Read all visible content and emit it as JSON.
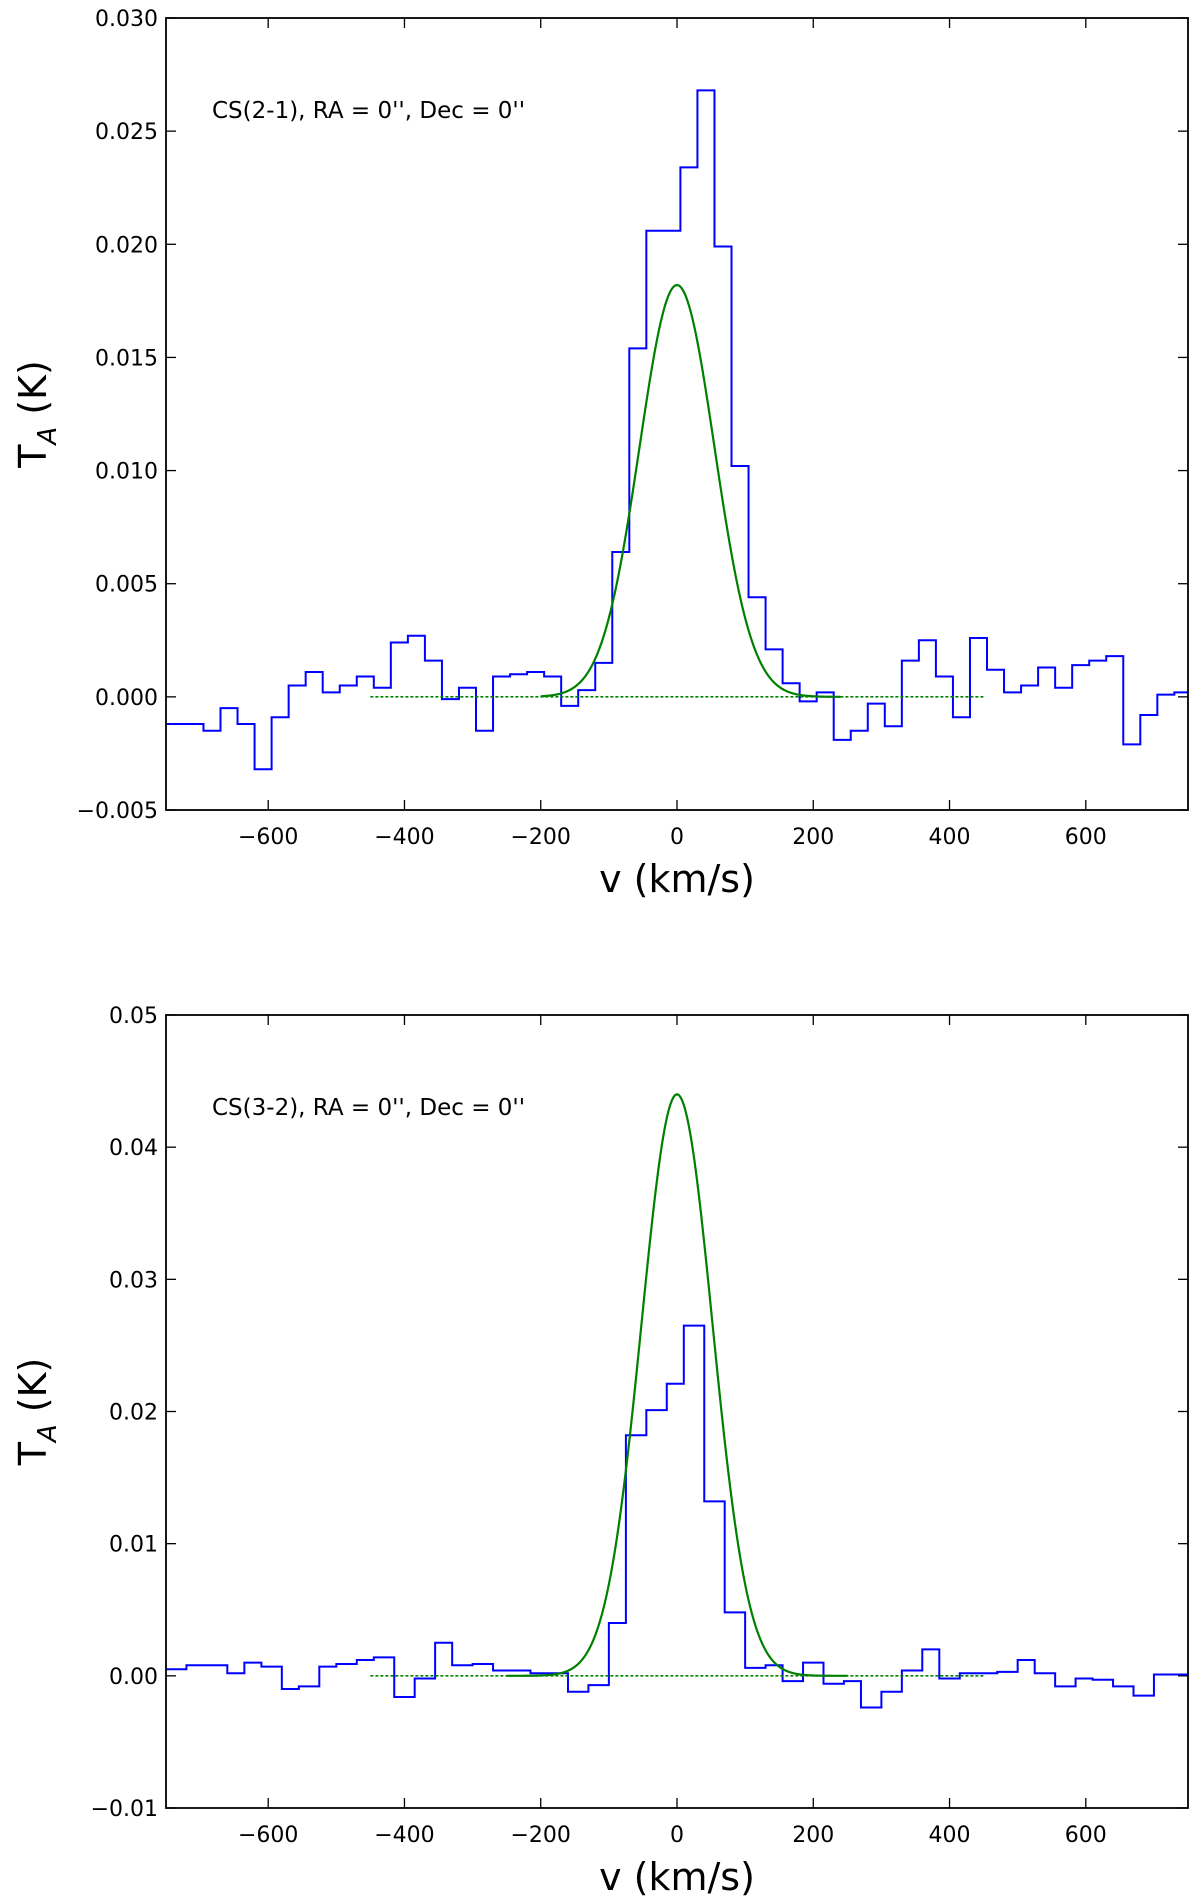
{
  "chart_data": [
    {
      "type": "line",
      "annotation": "CS(2-1), RA = 0'', Dec = 0''",
      "xlabel": "v (km/s)",
      "ylabel_main": "T",
      "ylabel_sub": "A",
      "ylabel_unit": "(K)",
      "xlim": [
        -750,
        750
      ],
      "ylim": [
        -0.005,
        0.03
      ],
      "xticks": [
        -600,
        -400,
        -200,
        0,
        200,
        400,
        600
      ],
      "xtick_labels": [
        "−600",
        "−400",
        "−200",
        "0",
        "200",
        "400",
        "600"
      ],
      "yticks": [
        -0.005,
        0.0,
        0.005,
        0.01,
        0.015,
        0.02,
        0.025,
        0.03
      ],
      "ytick_labels": [
        "−0.005",
        "0.000",
        "0.005",
        "0.010",
        "0.015",
        "0.020",
        "0.025",
        "0.030"
      ],
      "grid": false,
      "series": [
        {
          "style": "step",
          "color": "#0000ff",
          "x": [
            -750,
            -720,
            -695,
            -670,
            -645,
            -620,
            -595,
            -570,
            -545,
            -520,
            -495,
            -470,
            -445,
            -420,
            -395,
            -370,
            -345,
            -320,
            -295,
            -270,
            -245,
            -220,
            -195,
            -170,
            -145,
            -120,
            -95,
            -70,
            -45,
            -20,
            5,
            30,
            55,
            80,
            105,
            130,
            155,
            180,
            205,
            230,
            255,
            280,
            305,
            330,
            355,
            380,
            405,
            430,
            455,
            480,
            505,
            530,
            555,
            580,
            605,
            630,
            655,
            680,
            705,
            730,
            750
          ],
          "y": [
            -0.0012,
            -0.0012,
            -0.0015,
            -0.0005,
            -0.0012,
            -0.0032,
            -0.0009,
            0.0005,
            0.0011,
            0.0002,
            0.0005,
            0.0009,
            0.0004,
            0.0024,
            0.0027,
            0.0016,
            -0.0001,
            0.0004,
            -0.0015,
            0.0009,
            0.001,
            0.0011,
            0.0009,
            -0.0004,
            0.0003,
            0.0015,
            0.0064,
            0.0154,
            0.0206,
            0.0206,
            0.0234,
            0.0268,
            0.0199,
            0.0102,
            0.0044,
            0.0021,
            0.0006,
            -0.0002,
            0.0002,
            -0.0019,
            -0.0015,
            -0.0003,
            -0.0013,
            0.0016,
            0.0025,
            0.0009,
            -0.0009,
            0.0026,
            0.0012,
            0.0002,
            0.0005,
            0.0013,
            0.0004,
            0.0014,
            0.0016,
            0.0018,
            -0.0021,
            -0.0008,
            0.0001,
            0.0002,
            0.0002
          ]
        },
        {
          "style": "gaussian",
          "color": "#008000",
          "amplitude": 0.0182,
          "center": 0,
          "sigma": 55,
          "x_range": [
            -200,
            240
          ]
        },
        {
          "style": "baseline",
          "color": "#008000",
          "y": 0,
          "x_range": [
            -450,
            450
          ]
        }
      ]
    },
    {
      "type": "line",
      "annotation": "CS(3-2), RA = 0'', Dec = 0''",
      "xlabel": "v (km/s)",
      "ylabel_main": "T",
      "ylabel_sub": "A",
      "ylabel_unit": "(K)",
      "xlim": [
        -750,
        750
      ],
      "ylim": [
        -0.01,
        0.05
      ],
      "xticks": [
        -600,
        -400,
        -200,
        0,
        200,
        400,
        600
      ],
      "xtick_labels": [
        "−600",
        "−400",
        "−200",
        "0",
        "200",
        "400",
        "600"
      ],
      "yticks": [
        -0.01,
        0.0,
        0.01,
        0.02,
        0.03,
        0.04,
        0.05
      ],
      "ytick_labels": [
        "−0.01",
        "0.00",
        "0.01",
        "0.02",
        "0.03",
        "0.04",
        "0.05"
      ],
      "grid": false,
      "series": [
        {
          "style": "step",
          "color": "#0000ff",
          "x": [
            -750,
            -720,
            -690,
            -660,
            -635,
            -610,
            -580,
            -555,
            -525,
            -500,
            -470,
            -445,
            -415,
            -385,
            -355,
            -330,
            -300,
            -270,
            -240,
            -215,
            -185,
            -160,
            -130,
            -100,
            -75,
            -45,
            -15,
            10,
            40,
            70,
            100,
            130,
            155,
            185,
            215,
            245,
            270,
            300,
            330,
            360,
            385,
            415,
            440,
            470,
            500,
            525,
            555,
            585,
            610,
            640,
            670,
            700,
            730,
            750
          ],
          "y": [
            0.0005,
            0.0008,
            0.0008,
            0.0002,
            0.001,
            0.0007,
            -0.001,
            -0.0008,
            0.0007,
            0.0009,
            0.0012,
            0.0014,
            -0.0016,
            -0.0002,
            0.0025,
            0.0008,
            0.0009,
            0.0004,
            0.0004,
            0.0002,
            0.0002,
            -0.0012,
            -0.0007,
            0.004,
            0.0182,
            0.0201,
            0.0221,
            0.0265,
            0.0132,
            0.0048,
            0.0006,
            0.0008,
            -0.0004,
            0.001,
            -0.0006,
            -0.0004,
            -0.0024,
            -0.0012,
            0.0004,
            0.002,
            -0.0002,
            0.0002,
            0.0002,
            0.0003,
            0.0012,
            0.0002,
            -0.0008,
            -0.0002,
            -0.0003,
            -0.0008,
            -0.0015,
            0.0001,
            0.0001,
            0.0001
          ]
        },
        {
          "style": "gaussian",
          "color": "#008000",
          "amplitude": 0.044,
          "center": 0,
          "sigma": 52,
          "x_range": [
            -250,
            250
          ]
        },
        {
          "style": "baseline",
          "color": "#008000",
          "y": 0,
          "x_range": [
            -450,
            450
          ]
        }
      ]
    }
  ]
}
